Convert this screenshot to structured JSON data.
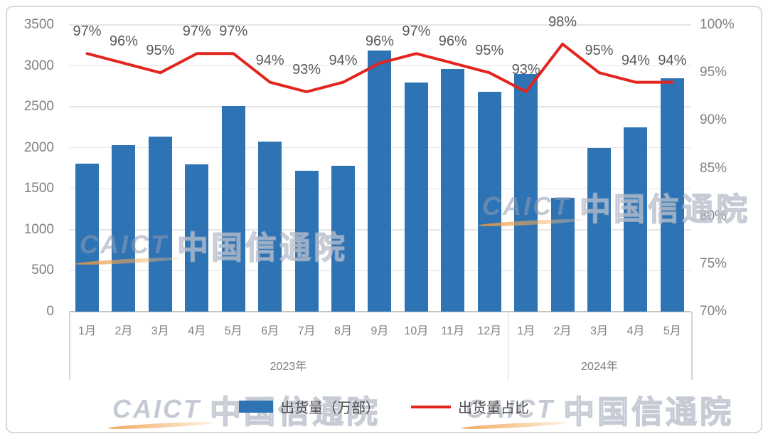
{
  "watermark": {
    "logo_text": "CAICT",
    "org_text": "中国信通院"
  },
  "legend": {
    "bar_label": "出货量（万部）",
    "line_label": "出货量占比"
  },
  "colors": {
    "bar": "#2E74B5",
    "line": "#E3251F",
    "grid": "#E5E5E5"
  },
  "chart_data": {
    "type": "bar",
    "subtype": "bar+line combo, dual axis",
    "categories": [
      "1月",
      "2月",
      "3月",
      "4月",
      "5月",
      "6月",
      "7月",
      "8月",
      "9月",
      "10月",
      "11月",
      "12月",
      "1月",
      "2月",
      "3月",
      "4月",
      "5月"
    ],
    "year_groups": [
      {
        "label": "2023年",
        "count": 12
      },
      {
        "label": "2024年",
        "count": 5
      }
    ],
    "series": [
      {
        "name": "出货量（万部）",
        "type": "bar",
        "axis": "left",
        "color": "#2E74B5",
        "values": [
          1810,
          2030,
          2140,
          1800,
          2510,
          2080,
          1720,
          1780,
          3190,
          2800,
          2960,
          2680,
          2900,
          1390,
          2000,
          2250,
          2850
        ]
      },
      {
        "name": "出货量占比",
        "type": "line",
        "axis": "right",
        "color": "#E3251F",
        "unit": "%",
        "values": [
          97,
          96,
          95,
          97,
          97,
          94,
          93,
          94,
          96,
          97,
          96,
          95,
          93,
          98,
          95,
          94,
          94
        ]
      }
    ],
    "point_labels": [
      "97%",
      "96%",
      "95%",
      "97%",
      "97%",
      "94%",
      "93%",
      "94%",
      "96%",
      "97%",
      "96%",
      "95%",
      "93%",
      "98%",
      "95%",
      "94%",
      "94%"
    ],
    "left_axis": {
      "min": 0,
      "max": 3500,
      "step": 500,
      "ticks": [
        "3500",
        "3000",
        "2500",
        "2000",
        "1500",
        "1000",
        "500",
        "0"
      ]
    },
    "right_axis": {
      "min": 70,
      "max": 100,
      "step": 5,
      "ticks": [
        "100%",
        "95%",
        "90%",
        "85%",
        "80%",
        "75%",
        "70%"
      ]
    },
    "grid": true,
    "legend_position": "bottom"
  }
}
